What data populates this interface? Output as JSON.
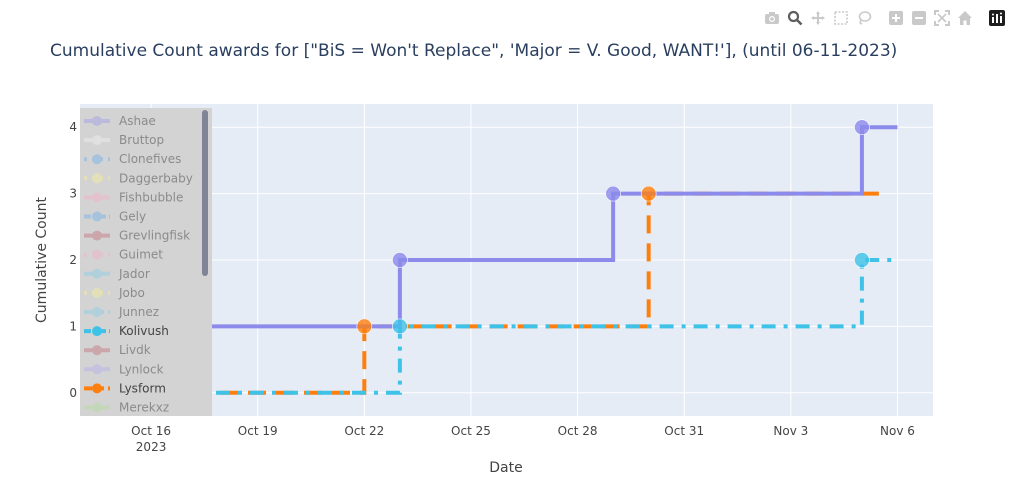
{
  "modebar": {
    "icons": [
      "camera-icon",
      "zoom-icon",
      "pan-icon",
      "box-select-icon",
      "lasso-icon",
      "zoom-in-icon",
      "zoom-out-icon",
      "autoscale-icon",
      "home-icon",
      "plotly-logo-icon"
    ]
  },
  "chart_data": {
    "type": "line",
    "title": "Cumulative Count awards for [\"BiS = Won't Replace\", 'Major = V. Good, WANT!'], (until 06-11-2023)",
    "xlabel": "Date",
    "ylabel": "Cumulative Count",
    "xlim": [
      "2023-10-14",
      "2023-11-07"
    ],
    "ylim": [
      -0.35,
      4.35
    ],
    "x_ticks": [
      {
        "date": "2023-10-16",
        "label": "Oct 16",
        "sublabel": "2023"
      },
      {
        "date": "2023-10-19",
        "label": "Oct 19",
        "sublabel": ""
      },
      {
        "date": "2023-10-22",
        "label": "Oct 22",
        "sublabel": ""
      },
      {
        "date": "2023-10-25",
        "label": "Oct 25",
        "sublabel": ""
      },
      {
        "date": "2023-10-28",
        "label": "Oct 28",
        "sublabel": ""
      },
      {
        "date": "2023-10-31",
        "label": "Oct 31",
        "sublabel": ""
      },
      {
        "date": "2023-11-03",
        "label": "Nov 3",
        "sublabel": ""
      },
      {
        "date": "2023-11-06",
        "label": "Nov 6",
        "sublabel": ""
      }
    ],
    "y_ticks": [
      0,
      1,
      2,
      3,
      4
    ],
    "grid": true,
    "legend_placement": "left-inside-scrollable",
    "legend": [
      {
        "name": "Ashae",
        "color": "#a5a3e8",
        "dash": "solid",
        "dim": true
      },
      {
        "name": "Bruttop",
        "color": "#eeeeee",
        "dash": "solid",
        "dim": true
      },
      {
        "name": "Clonefives",
        "color": "#7ab3e6",
        "dash": "dot",
        "dim": true
      },
      {
        "name": "Daggerbaby",
        "color": "#f3ee9c",
        "dash": "dot",
        "dim": true
      },
      {
        "name": "Fishbubble",
        "color": "#f2b2c8",
        "dash": "solid",
        "dim": true
      },
      {
        "name": "Gely",
        "color": "#7ab3e6",
        "dash": "dashdot",
        "dim": true
      },
      {
        "name": "Grevlingfisk",
        "color": "#c47b83",
        "dash": "solid",
        "dim": true
      },
      {
        "name": "Guimet",
        "color": "#f2b2c8",
        "dash": "dot",
        "dim": true
      },
      {
        "name": "Jador",
        "color": "#8ed0e4",
        "dash": "solid",
        "dim": true
      },
      {
        "name": "Jobo",
        "color": "#f3ee9c",
        "dash": "dot",
        "dim": true
      },
      {
        "name": "Junnez",
        "color": "#8ed0e4",
        "dash": "dash",
        "dim": true
      },
      {
        "name": "Kolivush",
        "color": "#3fc2e8",
        "dash": "dashdot",
        "dim": false
      },
      {
        "name": "Livdk",
        "color": "#c47b83",
        "dash": "solid",
        "dim": true
      },
      {
        "name": "Lynlock",
        "color": "#b6b3ea",
        "dash": "solid",
        "dim": true
      },
      {
        "name": "Lysform",
        "color": "#ff7f0e",
        "dash": "dash",
        "dim": false
      },
      {
        "name": "Merekxz",
        "color": "#b9dba0",
        "dash": "solid",
        "dim": true
      }
    ],
    "series": [
      {
        "name": "Lysform",
        "color": "#ff7f0e",
        "dash": "dash",
        "steps": [
          {
            "x": "2023-10-14",
            "y": 0
          },
          {
            "x": "2023-10-22",
            "y": 1
          },
          {
            "x": "2023-10-30",
            "y": 3
          },
          {
            "x": "2023-11-05.5",
            "y": 3
          }
        ],
        "markers": [
          {
            "x": "2023-10-22",
            "y": 1
          },
          {
            "x": "2023-10-30",
            "y": 3
          }
        ]
      },
      {
        "name": "Kolivush",
        "color": "#3fc2e8",
        "dash": "dashdot",
        "steps": [
          {
            "x": "2023-10-14",
            "y": 0
          },
          {
            "x": "2023-10-23",
            "y": 1
          },
          {
            "x": "2023-11-05",
            "y": 2
          },
          {
            "x": "2023-11-06",
            "y": 2
          }
        ],
        "markers": [
          {
            "x": "2023-10-23",
            "y": 1
          },
          {
            "x": "2023-11-05",
            "y": 2
          }
        ]
      },
      {
        "name": "Lynlock",
        "color": "#8c8aeb",
        "dash": "solid",
        "steps": [
          {
            "x": "2023-10-14",
            "y": 1
          },
          {
            "x": "2023-10-23",
            "y": 2
          },
          {
            "x": "2023-10-29",
            "y": 3
          },
          {
            "x": "2023-11-05",
            "y": 4
          },
          {
            "x": "2023-11-06",
            "y": 4
          }
        ],
        "markers": [
          {
            "x": "2023-10-23",
            "y": 2
          },
          {
            "x": "2023-10-29",
            "y": 3
          },
          {
            "x": "2023-11-05",
            "y": 4
          }
        ]
      }
    ]
  }
}
